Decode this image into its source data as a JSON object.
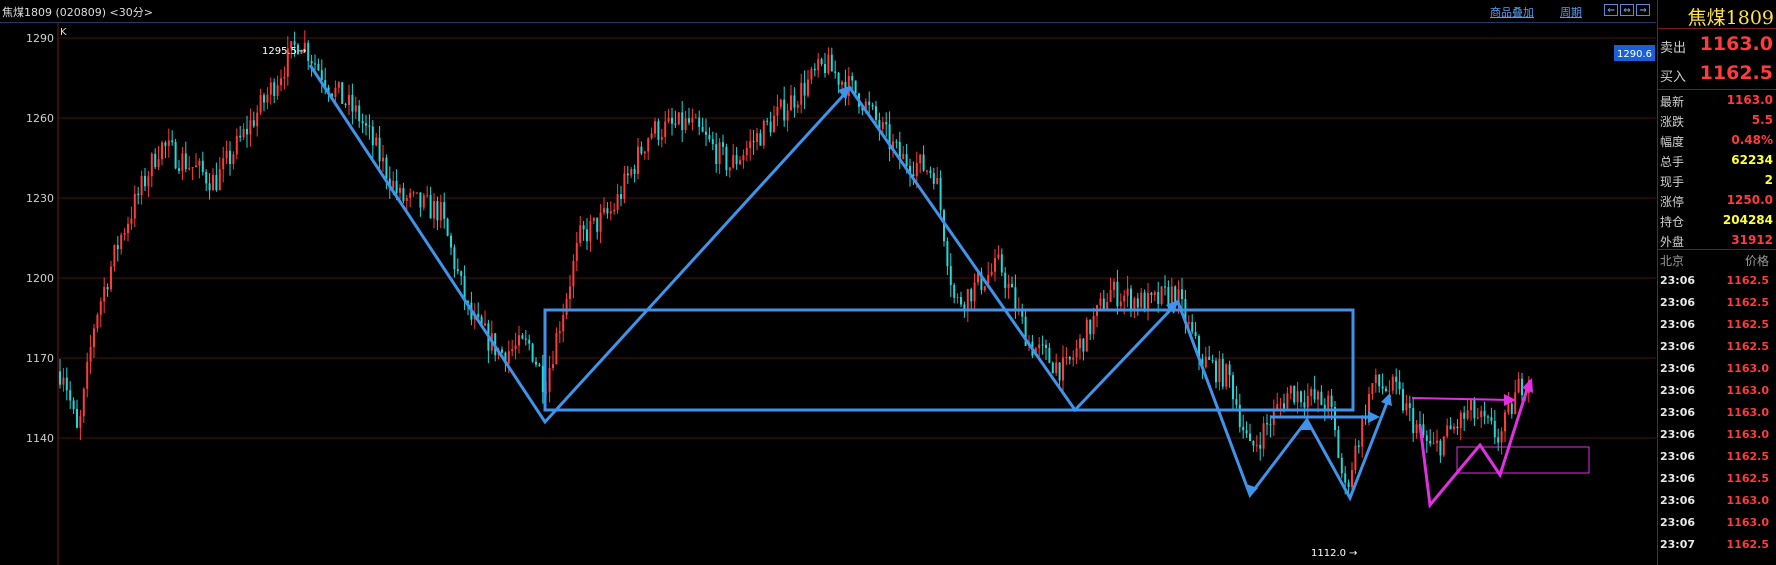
{
  "header": {
    "title": "焦煤1809 (020809) <30分>",
    "link_overlay": "商品叠加",
    "link_period": "周期"
  },
  "chart": {
    "corner_label": "K",
    "y_ticks": [
      "1290",
      "1260",
      "1230",
      "1200",
      "1170",
      "1140"
    ],
    "y_tick_values": [
      1290,
      1260,
      1230,
      1200,
      1170,
      1140
    ],
    "high_label": "1295.5",
    "low_label": "1112.0",
    "current_tag": "1290.6",
    "colors": {
      "up": "#ff3b3b",
      "down": "#20d8d8",
      "trend": "#3f94ea",
      "pattern": "#e030e0",
      "grid": "#4a0f0f"
    }
  },
  "panel": {
    "symbol": "焦煤1809",
    "ask_label": "卖出",
    "ask_value": "1163.0",
    "bid_label": "买入",
    "bid_value": "1162.5",
    "stats": [
      {
        "label": "最新",
        "value": "1163.0",
        "color": "red"
      },
      {
        "label": "涨跌",
        "value": "5.5",
        "color": "red"
      },
      {
        "label": "幅度",
        "value": "0.48%",
        "color": "red"
      },
      {
        "label": "总手",
        "value": "62234",
        "color": "yellow"
      },
      {
        "label": "现手",
        "value": "2",
        "color": "yellow"
      },
      {
        "label": "涨停",
        "value": "1250.0",
        "color": "red"
      },
      {
        "label": "持仓",
        "value": "204284",
        "color": "yellow"
      },
      {
        "label": "外盘",
        "value": "31912",
        "color": "red"
      }
    ],
    "tick_header_time": "北京",
    "tick_header_price": "价格",
    "ticks": [
      {
        "time": "23:06",
        "price": "1162.5"
      },
      {
        "time": "23:06",
        "price": "1162.5"
      },
      {
        "time": "23:06",
        "price": "1162.5"
      },
      {
        "time": "23:06",
        "price": "1162.5"
      },
      {
        "time": "23:06",
        "price": "1163.0"
      },
      {
        "time": "23:06",
        "price": "1163.0"
      },
      {
        "time": "23:06",
        "price": "1163.0"
      },
      {
        "time": "23:06",
        "price": "1163.0"
      },
      {
        "time": "23:06",
        "price": "1162.5"
      },
      {
        "time": "23:06",
        "price": "1162.5"
      },
      {
        "time": "23:06",
        "price": "1163.0"
      },
      {
        "time": "23:06",
        "price": "1163.0"
      },
      {
        "time": "23:07",
        "price": "1162.5"
      }
    ]
  }
}
